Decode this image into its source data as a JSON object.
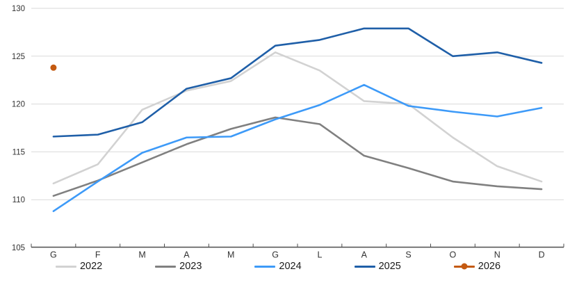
{
  "chart_data": {
    "type": "line",
    "title": "",
    "xlabel": "",
    "ylabel": "",
    "categories": [
      "G",
      "F",
      "M",
      "A",
      "M",
      "G",
      "L",
      "A",
      "S",
      "O",
      "N",
      "D"
    ],
    "series": [
      {
        "name": "2022",
        "color": "#D2D2D2",
        "marker": false,
        "values": [
          111.7,
          113.7,
          119.4,
          121.4,
          122.4,
          125.4,
          123.5,
          120.3,
          120.0,
          116.5,
          113.5,
          111.9
        ]
      },
      {
        "name": "2023",
        "color": "#808080",
        "marker": false,
        "values": [
          110.4,
          112.0,
          113.9,
          115.8,
          117.4,
          118.6,
          117.9,
          114.6,
          113.3,
          111.9,
          111.4,
          111.1
        ]
      },
      {
        "name": "2024",
        "color": "#3D9AF8",
        "marker": false,
        "values": [
          108.8,
          111.9,
          114.9,
          116.5,
          116.6,
          118.4,
          119.9,
          122.0,
          119.8,
          119.2,
          118.7,
          119.6
        ]
      },
      {
        "name": "2025",
        "color": "#1F5FA8",
        "marker": false,
        "values": [
          116.6,
          116.8,
          118.1,
          121.6,
          122.7,
          126.1,
          126.7,
          127.9,
          127.9,
          125.0,
          125.4,
          124.3
        ]
      },
      {
        "name": "2026",
        "color": "#C45A11",
        "marker": true,
        "values": [
          123.8,
          null,
          null,
          null,
          null,
          null,
          null,
          null,
          null,
          null,
          null,
          null
        ]
      }
    ],
    "ylim": [
      105,
      130
    ],
    "yticks": [
      105,
      110,
      115,
      120,
      125,
      130
    ],
    "grid": true,
    "legend_position": "bottom",
    "colors": {
      "gridline": "#D9D9D9",
      "axis_line": "#4D4D4D",
      "tick_label": "#333333"
    }
  }
}
